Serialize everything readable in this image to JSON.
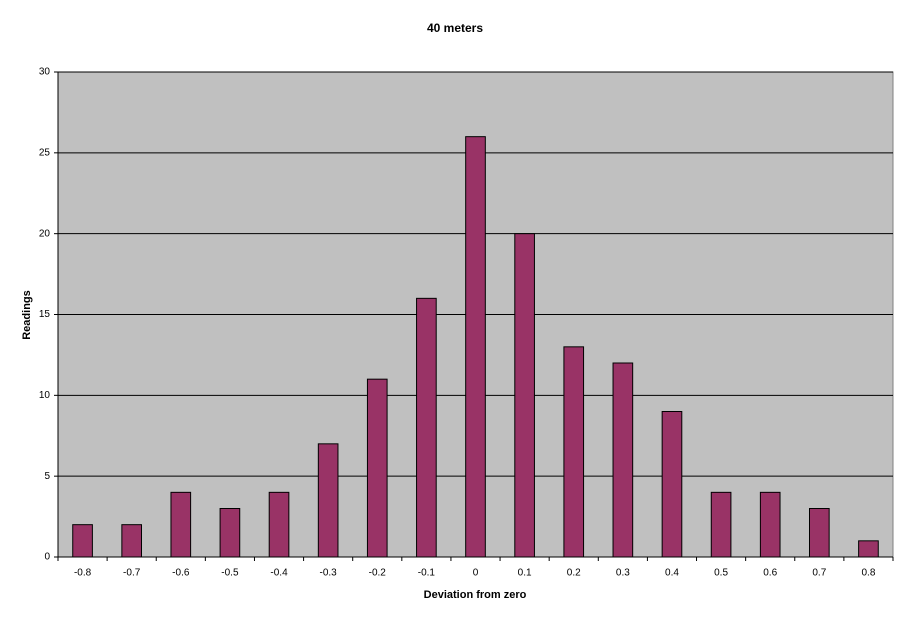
{
  "chart_data": {
    "type": "bar",
    "title": "40 meters",
    "x_label": "Deviation from zero",
    "y_label": "Readings",
    "categories": [
      "-0.8",
      "-0.7",
      "-0.6",
      "-0.5",
      "-0.4",
      "-0.3",
      "-0.2",
      "-0.1",
      "0",
      "0.1",
      "0.2",
      "0.3",
      "0.4",
      "0.5",
      "0.6",
      "0.7",
      "0.8"
    ],
    "values": [
      2,
      2,
      4,
      3,
      4,
      7,
      11,
      16,
      26,
      20,
      13,
      12,
      9,
      4,
      4,
      3,
      1
    ],
    "color": "#993366",
    "ylim": [
      0,
      30
    ],
    "yticks": [
      0,
      5,
      10,
      15,
      20,
      25,
      30
    ],
    "grid": true
  }
}
